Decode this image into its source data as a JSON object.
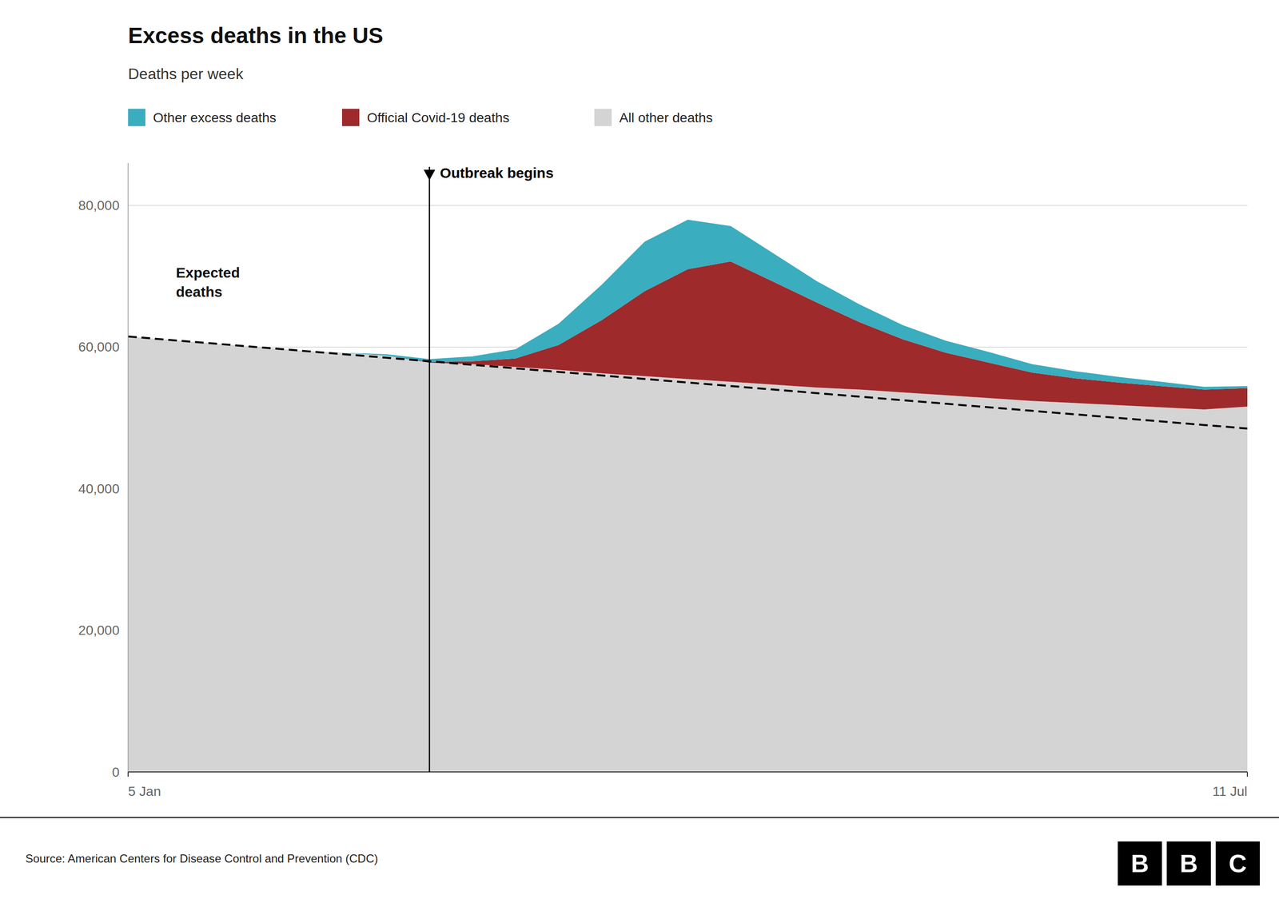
{
  "chart_data": {
    "type": "area",
    "stacked": true,
    "title": "Excess deaths in the US",
    "subtitle": "Deaths per week",
    "source": "Source: American Centers for Disease Control and Prevention (CDC)",
    "logo": "BBC",
    "x": [
      0,
      1,
      2,
      3,
      4,
      5,
      6,
      7,
      8,
      9,
      10,
      11,
      12,
      13,
      14,
      15,
      16,
      17,
      18,
      19,
      20,
      21,
      22,
      23,
      24,
      25,
      26
    ],
    "xlim": [
      0,
      26
    ],
    "xticks": [
      {
        "value": 0,
        "label": "5 Jan"
      },
      {
        "value": 26,
        "label": "11 Jul"
      }
    ],
    "ylim": [
      0,
      86000
    ],
    "yticks": [
      0,
      {
        "value": 20000,
        "label": "20,000"
      },
      {
        "value": 40000,
        "label": "40,000"
      },
      {
        "value": 60000,
        "label": "60,000"
      },
      {
        "value": 80000,
        "label": "80,000"
      }
    ],
    "grid": true,
    "series": [
      {
        "name": "All other deaths",
        "color": "#d4d4d4",
        "values": [
          61500,
          61000,
          60500,
          60000,
          59500,
          59200,
          58800,
          57800,
          57600,
          57200,
          56800,
          56300,
          55900,
          55500,
          55100,
          54700,
          54300,
          54000,
          53600,
          53200,
          52800,
          52400,
          52100,
          51800,
          51500,
          51200,
          51600
        ]
      },
      {
        "name": "Official Covid-19 deaths",
        "color": "#9e2a2b",
        "values": [
          0,
          0,
          0,
          0,
          0,
          0,
          0,
          100,
          400,
          1200,
          3500,
          7500,
          12000,
          15500,
          17000,
          14500,
          12000,
          9500,
          7500,
          6000,
          5000,
          4000,
          3500,
          3200,
          3000,
          2800,
          2600
        ]
      },
      {
        "name": "Other excess deaths",
        "color": "#3aadbe",
        "values": [
          0,
          0,
          0,
          0,
          0,
          0,
          200,
          400,
          700,
          1300,
          3000,
          5000,
          7000,
          7000,
          5000,
          4000,
          3000,
          2500,
          2000,
          1700,
          1500,
          1200,
          1000,
          800,
          600,
          400,
          300
        ]
      },
      {
        "name": "Expected deaths",
        "type": "line",
        "line_style": "dashed",
        "color": "#000000",
        "values": [
          61500,
          61000,
          60500,
          60000,
          59500,
          59000,
          58500,
          58000,
          57500,
          57000,
          56500,
          56000,
          55500,
          55000,
          54500,
          54000,
          53500,
          53000,
          52500,
          52000,
          51500,
          51000,
          50500,
          50000,
          49500,
          49000,
          48500
        ]
      }
    ],
    "annotations": [
      {
        "text": "Outbreak begins",
        "x": 7
      }
    ]
  }
}
